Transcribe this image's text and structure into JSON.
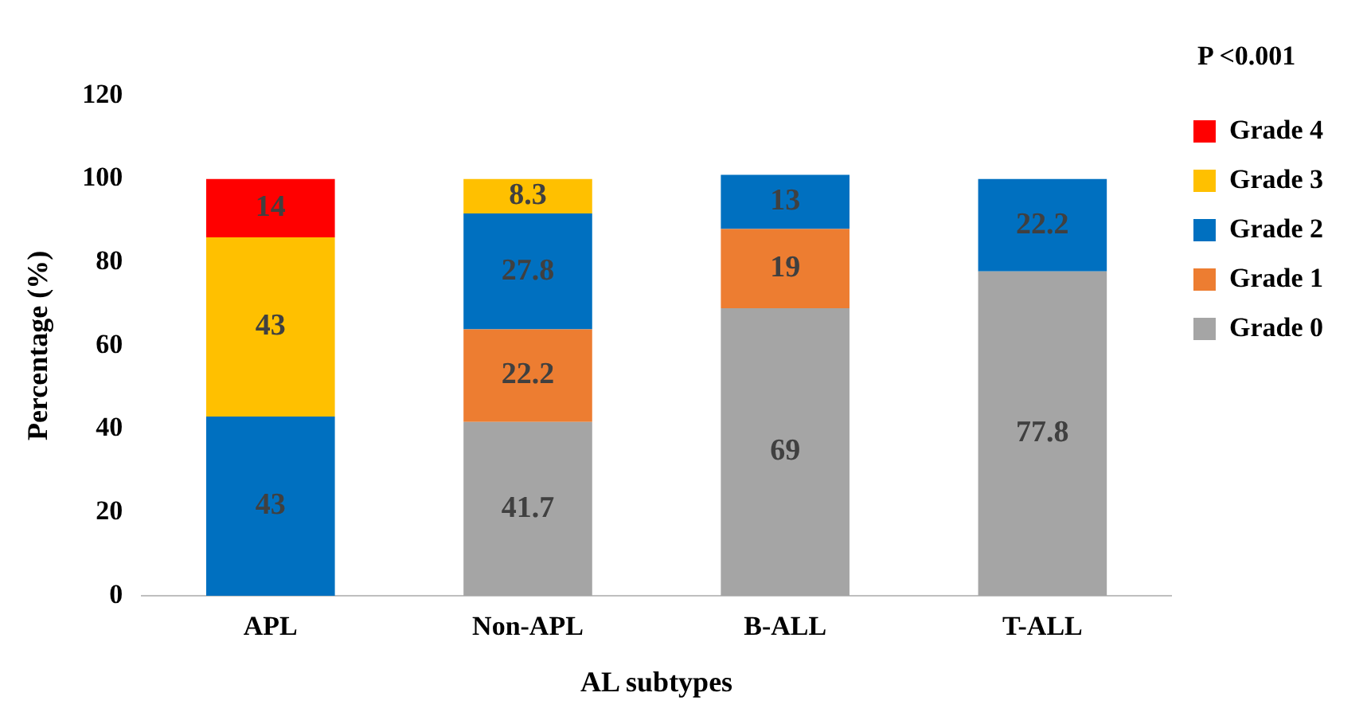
{
  "chart_data": {
    "type": "bar",
    "stacked": true,
    "xlabel": "AL subtypes",
    "ylabel": "Percentage (%)",
    "categories": [
      "APL",
      "Non-APL",
      "B-ALL",
      "T-ALL"
    ],
    "series": [
      {
        "name": "Grade 0",
        "color": "#a5a5a5",
        "values": [
          null,
          41.7,
          69,
          77.8
        ]
      },
      {
        "name": "Grade 1",
        "color": "#ed7d31",
        "values": [
          null,
          22.2,
          19,
          null
        ]
      },
      {
        "name": "Grade 2",
        "color": "#0070c0",
        "values": [
          43,
          27.8,
          13,
          22.2
        ]
      },
      {
        "name": "Grade 3",
        "color": "#ffc000",
        "values": [
          43,
          8.3,
          null,
          null
        ]
      },
      {
        "name": "Grade 4",
        "color": "#ff0000",
        "values": [
          14,
          null,
          null,
          null
        ]
      }
    ],
    "ylim": [
      0,
      120
    ],
    "yticks": [
      0,
      20,
      40,
      60,
      80,
      100,
      120
    ],
    "grid": false,
    "legend": "right",
    "data_labels": true,
    "annotations": [
      "P <0.001"
    ]
  }
}
